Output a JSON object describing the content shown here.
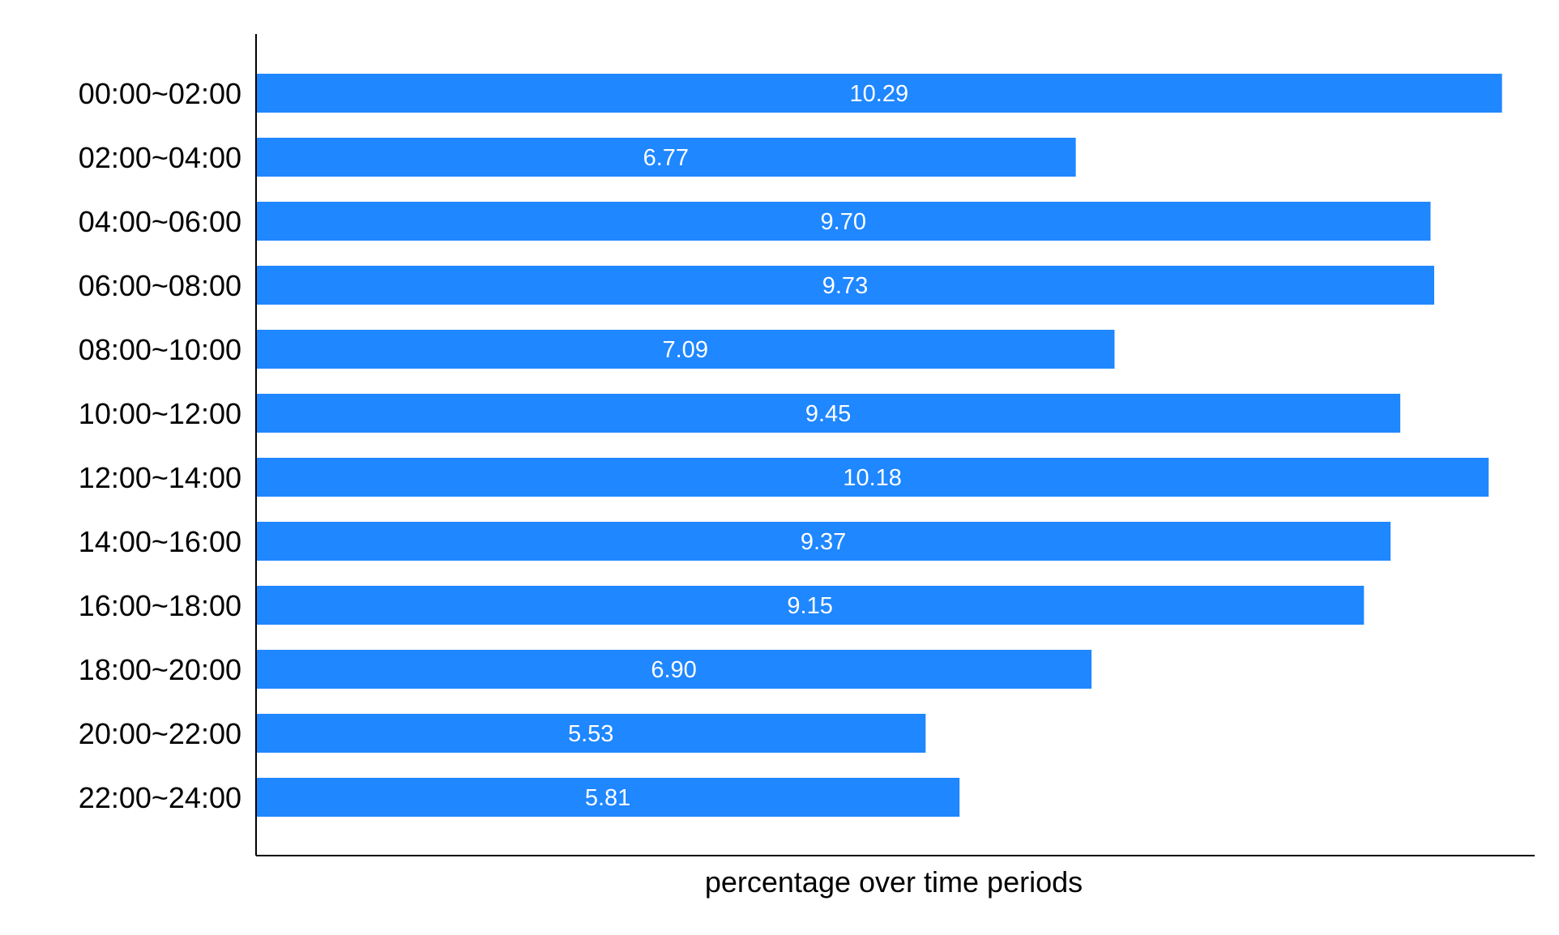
{
  "chart_data": {
    "type": "bar",
    "orientation": "horizontal",
    "categories": [
      "00:00~02:00",
      "02:00~04:00",
      "04:00~06:00",
      "06:00~08:00",
      "08:00~10:00",
      "10:00~12:00",
      "12:00~14:00",
      "14:00~16:00",
      "16:00~18:00",
      "18:00~20:00",
      "20:00~22:00",
      "22:00~24:00"
    ],
    "values": [
      10.29,
      6.77,
      9.7,
      9.73,
      7.09,
      9.45,
      10.18,
      9.37,
      9.15,
      6.9,
      5.53,
      5.81
    ],
    "value_labels": [
      "10.29",
      "6.77",
      "9.70",
      "9.73",
      "7.09",
      "9.45",
      "10.18",
      "9.37",
      "9.15",
      "6.90",
      "5.53",
      "5.81"
    ],
    "xlabel": "percentage over time periods",
    "ylabel": "",
    "title": "",
    "xlim": [
      0,
      10.56
    ],
    "grid": false,
    "legend": "none",
    "bar_color": "#1f87ff",
    "label_color": "#ffffff",
    "axis_color": "#000000"
  }
}
